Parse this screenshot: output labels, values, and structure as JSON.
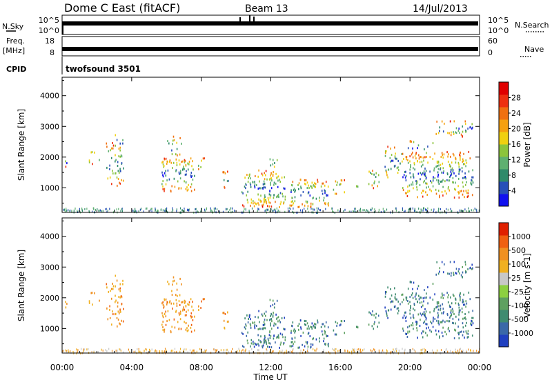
{
  "header": {
    "station": "Dome C East (fitACF)",
    "beam": "Beam 13",
    "date": "14/Jul/2013"
  },
  "strip_panels": {
    "nsky": {
      "label": "N.Sky",
      "ticks": [
        "10^5",
        "10^0"
      ],
      "right_ticks": [
        "10^5",
        "10^0"
      ],
      "right_label": "N.Search"
    },
    "freq": {
      "label_line1": "Freq.",
      "label_line2": "[MHz]",
      "ticks": [
        "18",
        "8"
      ],
      "right_ticks": [
        "60",
        "0"
      ],
      "right_label": "Nave"
    },
    "cpid": {
      "label": "CPID",
      "program": "twofsound 3501"
    }
  },
  "chart_data": [
    {
      "type": "heatmap",
      "panel": "power",
      "xlabel": "",
      "ylabel": "Slant Range [km]",
      "x_ticks": [
        "00:00",
        "04:00",
        "08:00",
        "12:00",
        "16:00",
        "20:00",
        "00:00"
      ],
      "x_range_hours": [
        0,
        24
      ],
      "y_ticks": [
        1000,
        2000,
        3000,
        4000
      ],
      "y_range_km": [
        200,
        4600
      ],
      "colorbar_label": "Power [dB]",
      "colorbar_ticks": [
        "28",
        "24",
        "20",
        "16",
        "12",
        "8",
        "4"
      ],
      "colorbar_colors": [
        "#1010f0",
        "#2850b8",
        "#2f8a6a",
        "#5fb070",
        "#8cc43c",
        "#f0d010",
        "#f5a010",
        "#f07010",
        "#ee3010",
        "#e00000"
      ]
    },
    {
      "type": "heatmap",
      "panel": "velocity",
      "xlabel": "Time UT",
      "ylabel": "Slant Range [km]",
      "x_ticks": [
        "00:00",
        "04:00",
        "08:00",
        "12:00",
        "16:00",
        "20:00",
        "00:00"
      ],
      "x_range_hours": [
        0,
        24
      ],
      "y_ticks": [
        1000,
        2000,
        3000,
        4000
      ],
      "y_range_km": [
        200,
        4600
      ],
      "colorbar_label": "Velocity [m s-1]",
      "colorbar_ticks": [
        "1000",
        "500",
        "100",
        "25",
        "-25",
        "-100",
        "-500",
        "-1000"
      ],
      "colorbar_colors": [
        "#2040c0",
        "#3a68a8",
        "#3f8b70",
        "#5ea060",
        "#8cd040",
        "#c8c8c8",
        "#f0b020",
        "#f09020",
        "#f06010",
        "#e02000"
      ]
    }
  ]
}
